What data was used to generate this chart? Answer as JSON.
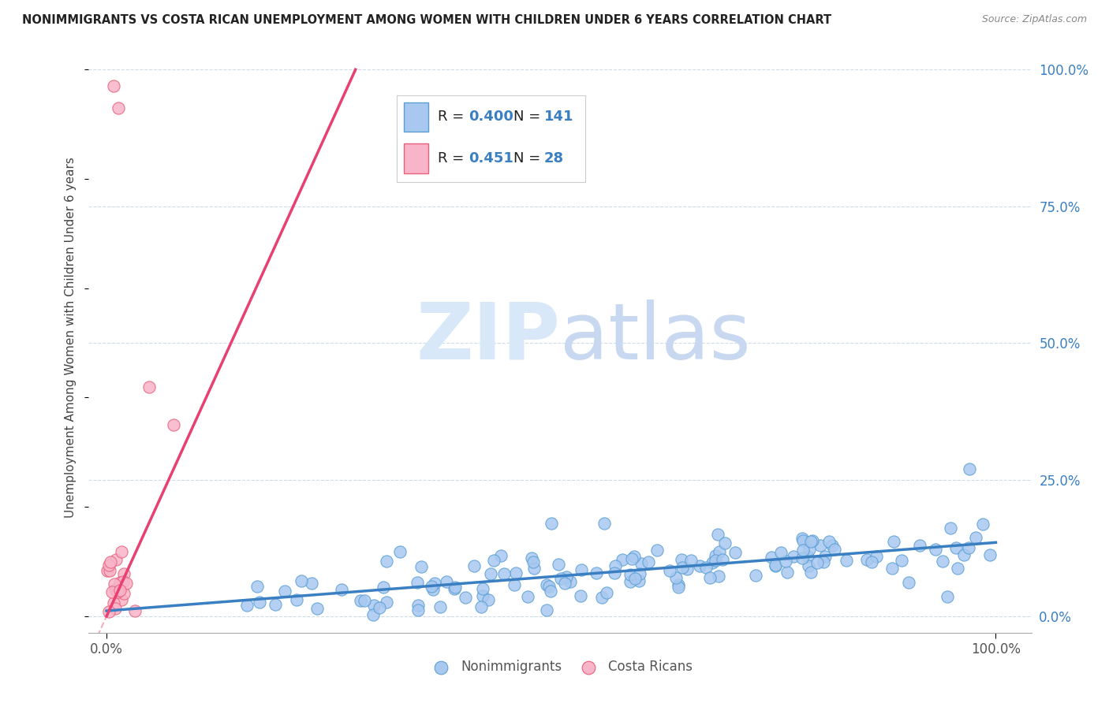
{
  "title": "NONIMMIGRANTS VS COSTA RICAN UNEMPLOYMENT AMONG WOMEN WITH CHILDREN UNDER 6 YEARS CORRELATION CHART",
  "source": "Source: ZipAtlas.com",
  "ylabel": "Unemployment Among Women with Children Under 6 years",
  "ytick_labels": [
    "0.0%",
    "25.0%",
    "50.0%",
    "75.0%",
    "100.0%"
  ],
  "ytick_values": [
    0.0,
    0.25,
    0.5,
    0.75,
    1.0
  ],
  "xtick_labels": [
    "0.0%",
    "100.0%"
  ],
  "xtick_values": [
    0.0,
    1.0
  ],
  "blue_R": 0.4,
  "blue_N": 141,
  "pink_R": 0.451,
  "pink_N": 28,
  "blue_scatter_color": "#A8C8F0",
  "blue_edge_color": "#5A9FD4",
  "pink_scatter_color": "#F8B4C8",
  "pink_edge_color": "#E8607A",
  "blue_line_color": "#3A7FC1",
  "pink_line_color": "#E84070",
  "grid_color": "#C8D8E8",
  "watermark_color": "#D8E8F8",
  "legend_label_1": "Nonimmigrants",
  "legend_label_2": "Costa Ricans",
  "blue_trend_x0": 0.0,
  "blue_trend_y0": 0.01,
  "blue_trend_x1": 1.0,
  "blue_trend_y1": 0.135,
  "pink_trend_x0": 0.0,
  "pink_trend_y0": 0.0,
  "pink_trend_x1": 0.3,
  "pink_trend_y1": 1.0,
  "pink_trend_dashed_x0": 0.0,
  "pink_trend_dashed_y0": 0.0,
  "pink_trend_dashed_x1": 0.22,
  "pink_trend_dashed_y1": 1.0
}
